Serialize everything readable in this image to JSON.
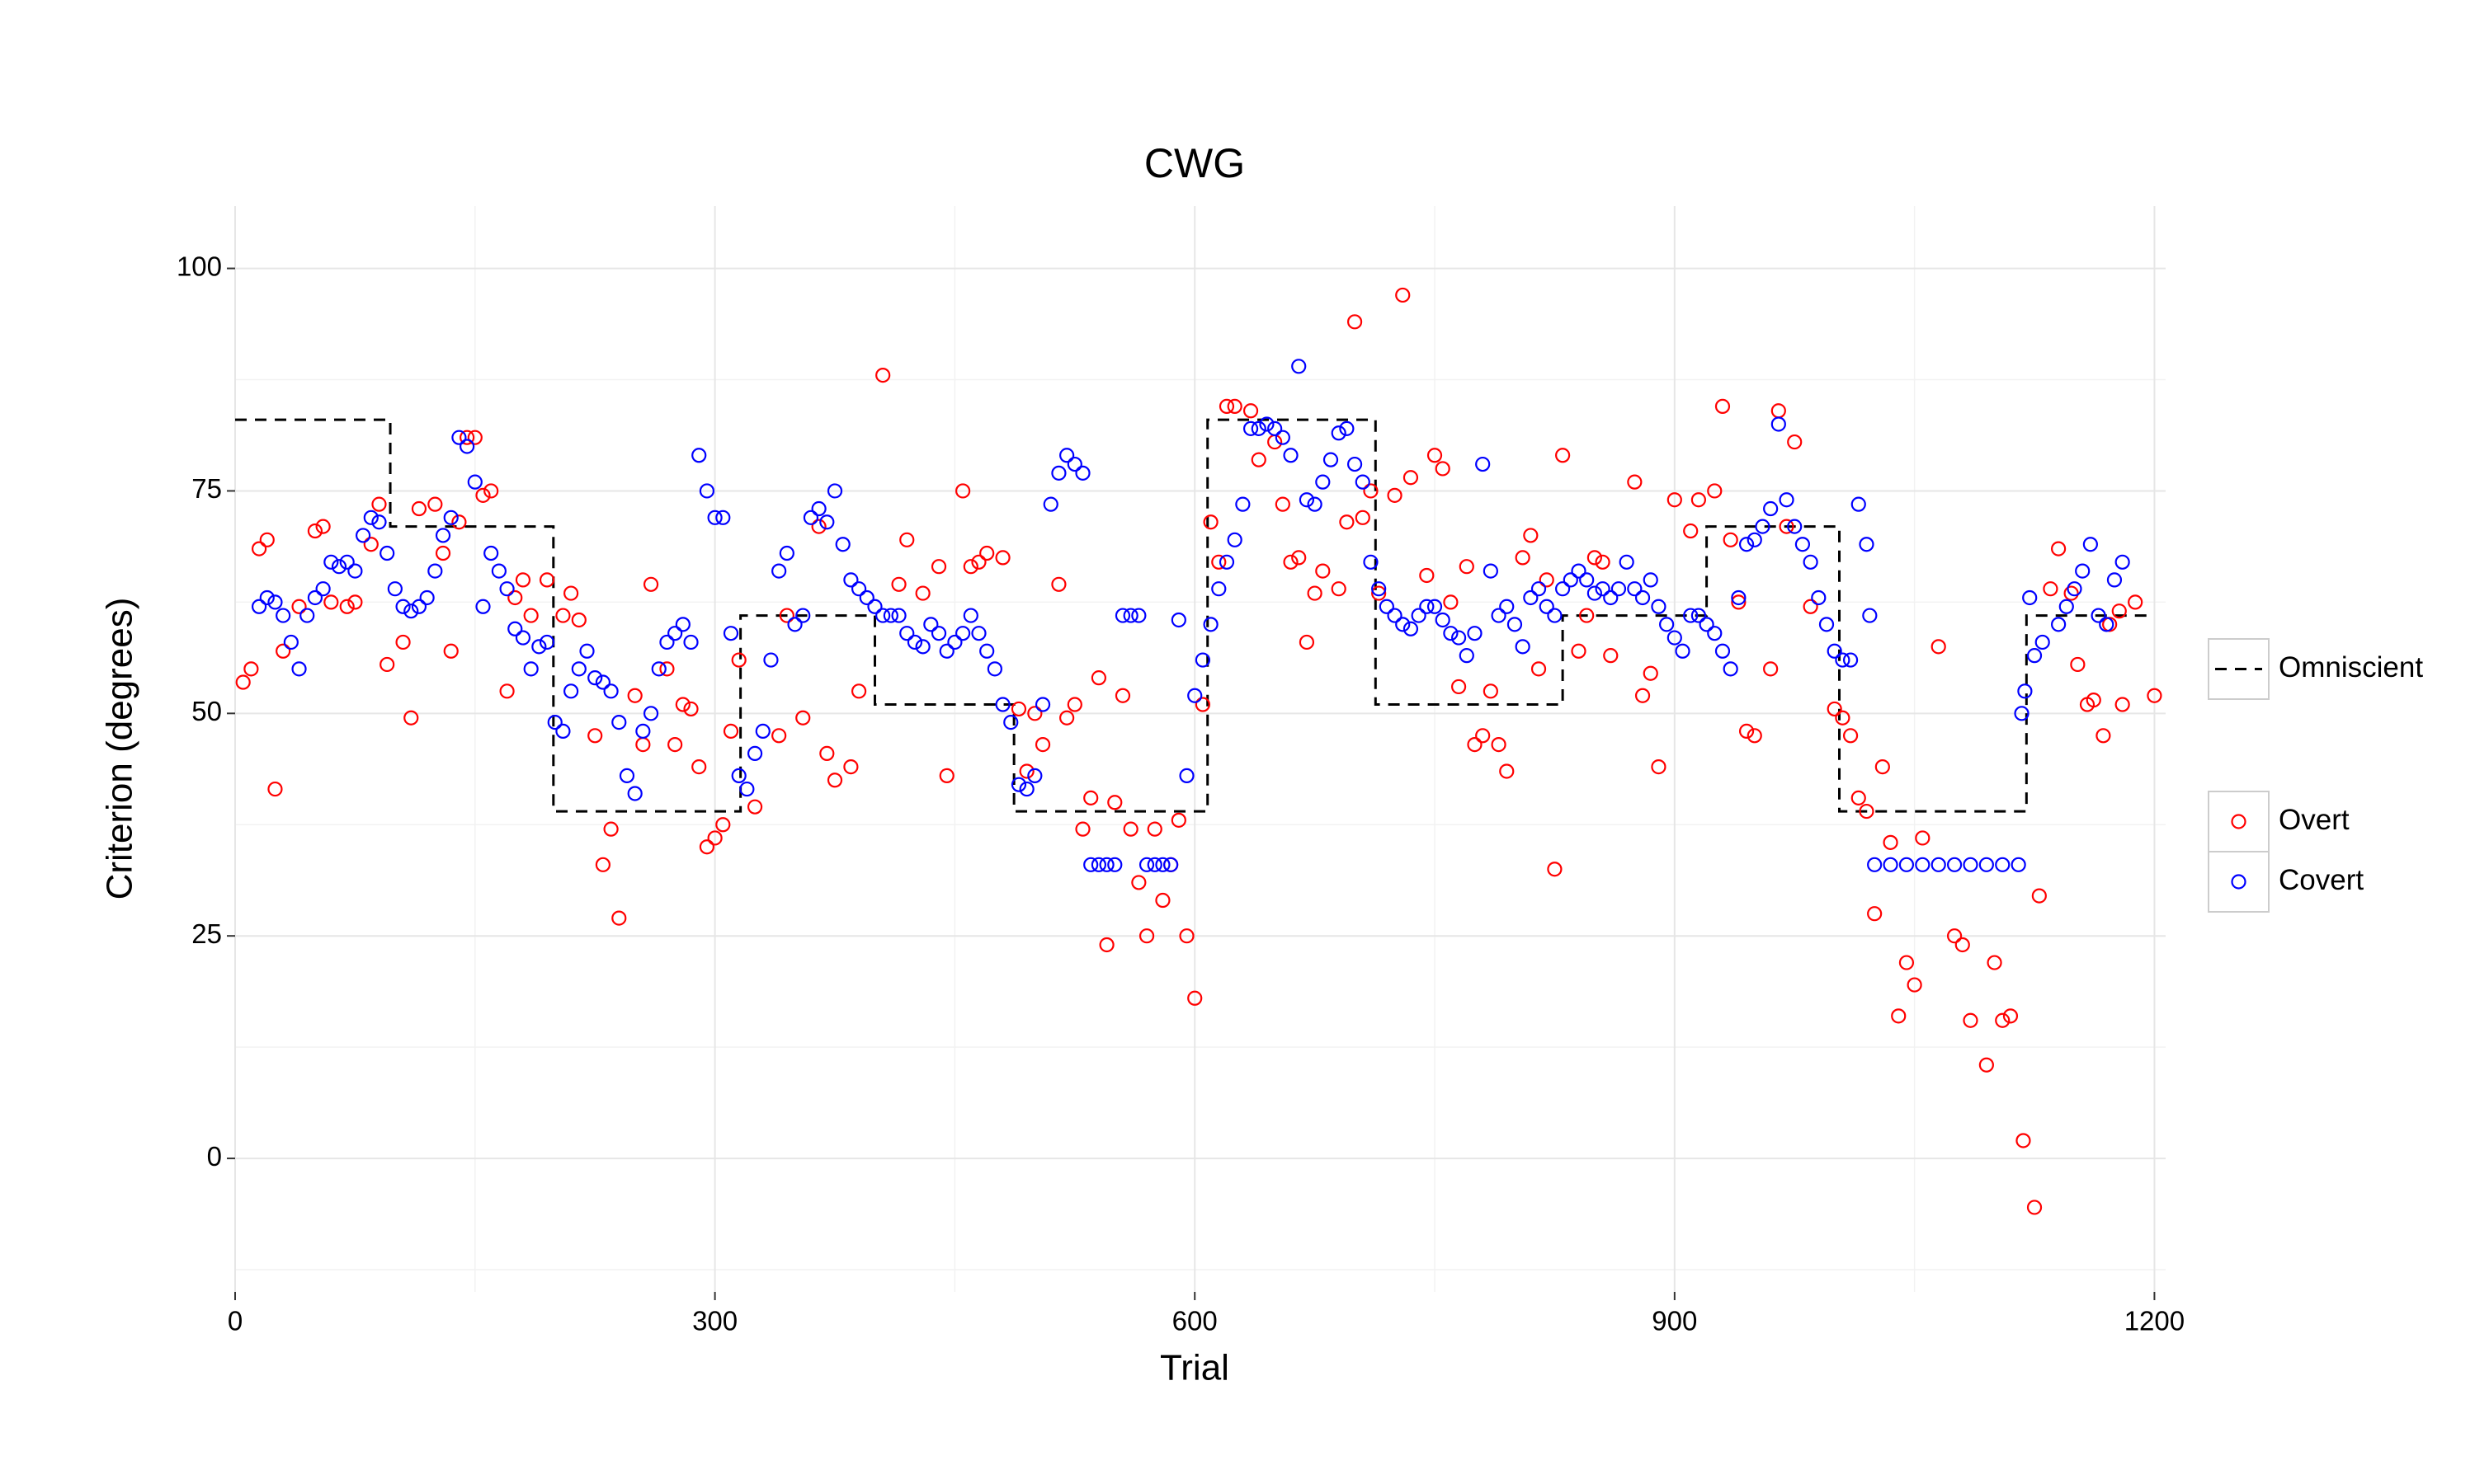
{
  "chart_data": {
    "type": "scatter",
    "title": "CWG",
    "x_label": "Trial",
    "y_label": "Criterion (degrees)",
    "xlim": [
      0,
      1207
    ],
    "ylim": [
      -15,
      107
    ],
    "xticks": [
      0,
      300,
      600,
      900,
      1200
    ],
    "yticks": [
      0,
      25,
      50,
      75,
      100
    ],
    "x_minor_ticks": [
      150,
      450,
      750,
      1050
    ],
    "y_minor_ticks": [
      -12.5,
      12.5,
      37.5,
      62.5,
      87.5
    ],
    "grid": true,
    "series": [
      {
        "name": "Overt",
        "type": "scatter",
        "color": "#ff0000",
        "x": [
          5,
          10,
          15,
          20,
          25,
          30,
          40,
          50,
          55,
          60,
          70,
          75,
          85,
          90,
          95,
          105,
          110,
          115,
          125,
          130,
          135,
          140,
          145,
          150,
          155,
          160,
          170,
          175,
          180,
          185,
          195,
          205,
          210,
          215,
          225,
          230,
          235,
          240,
          250,
          255,
          260,
          270,
          275,
          280,
          285,
          290,
          295,
          300,
          305,
          310,
          315,
          325,
          340,
          345,
          355,
          365,
          370,
          375,
          385,
          390,
          405,
          415,
          420,
          430,
          440,
          445,
          455,
          460,
          465,
          470,
          480,
          490,
          495,
          500,
          505,
          515,
          520,
          525,
          530,
          535,
          540,
          545,
          550,
          555,
          560,
          565,
          570,
          575,
          580,
          585,
          590,
          595,
          600,
          605,
          610,
          615,
          620,
          625,
          635,
          640,
          650,
          655,
          660,
          665,
          670,
          675,
          680,
          690,
          695,
          700,
          705,
          710,
          715,
          725,
          730,
          735,
          745,
          750,
          755,
          760,
          765,
          770,
          775,
          780,
          785,
          790,
          795,
          805,
          810,
          815,
          820,
          825,
          830,
          840,
          845,
          850,
          855,
          860,
          875,
          880,
          885,
          890,
          900,
          910,
          915,
          925,
          930,
          935,
          940,
          945,
          950,
          960,
          965,
          970,
          975,
          985,
          1000,
          1005,
          1010,
          1015,
          1020,
          1025,
          1030,
          1035,
          1040,
          1045,
          1050,
          1055,
          1065,
          1075,
          1080,
          1085,
          1095,
          1100,
          1105,
          1110,
          1118,
          1125,
          1128,
          1135,
          1140,
          1148,
          1152,
          1158,
          1162,
          1168,
          1172,
          1178,
          1180,
          1188,
          1200
        ],
        "values": [
          53.5,
          55,
          68.5,
          69.5,
          41.5,
          57,
          62,
          70.5,
          71,
          62.5,
          62,
          62.5,
          69,
          73.5,
          55.5,
          58,
          49.5,
          73,
          73.5,
          68,
          57,
          71.5,
          81,
          81,
          74.5,
          75,
          52.5,
          63,
          65,
          61,
          65,
          61,
          63.5,
          60.5,
          47.5,
          33,
          37,
          27,
          52,
          46.5,
          64.5,
          55,
          46.5,
          51,
          50.5,
          44,
          35,
          36,
          37.5,
          48,
          56,
          39.5,
          47.5,
          61,
          49.5,
          71,
          45.5,
          42.5,
          44,
          52.5,
          88,
          64.5,
          69.5,
          63.5,
          66.5,
          43,
          75,
          66.5,
          67,
          68,
          67.5,
          50.5,
          43.5,
          50,
          46.5,
          64.5,
          49.5,
          51,
          37,
          40.5,
          54,
          24,
          40,
          52,
          37,
          31,
          25,
          37,
          29,
          33,
          38,
          25,
          18,
          51,
          71.5,
          67,
          84.5,
          84.5,
          84,
          78.5,
          80.5,
          73.5,
          67,
          67.5,
          58,
          63.5,
          66,
          64,
          71.5,
          94,
          72,
          75,
          63.5,
          74.5,
          97,
          76.5,
          65.5,
          79,
          77.5,
          62.5,
          53,
          66.5,
          46.5,
          47.5,
          52.5,
          46.5,
          43.5,
          67.5,
          70,
          55,
          65,
          32.5,
          79,
          57,
          61,
          67.5,
          67,
          56.5,
          76,
          52,
          54.5,
          44,
          74,
          70.5,
          74,
          75,
          84.5,
          69.5,
          62.5,
          48,
          47.5,
          55,
          84,
          71,
          80.5,
          62,
          50.5,
          49.5,
          47.5,
          40.5,
          39,
          27.5,
          44,
          35.5,
          16,
          22,
          19.5,
          36,
          57.5,
          25,
          24,
          15.5,
          10.5,
          22,
          15.5,
          16,
          2,
          -5.5,
          29.5,
          64,
          68.5,
          63.5,
          55.5,
          51,
          51.5,
          47.5,
          60,
          61.5,
          51,
          62.5,
          52
        ]
      },
      {
        "name": "Covert",
        "type": "scatter",
        "color": "#0000ff",
        "x": [
          15,
          20,
          25,
          30,
          35,
          40,
          45,
          50,
          55,
          60,
          65,
          70,
          75,
          80,
          85,
          90,
          95,
          100,
          105,
          110,
          115,
          120,
          125,
          130,
          135,
          140,
          145,
          150,
          155,
          160,
          165,
          170,
          175,
          180,
          185,
          190,
          195,
          200,
          205,
          210,
          215,
          220,
          225,
          230,
          235,
          240,
          245,
          250,
          255,
          260,
          265,
          270,
          275,
          280,
          285,
          290,
          295,
          300,
          305,
          310,
          315,
          320,
          325,
          330,
          335,
          340,
          345,
          350,
          355,
          360,
          365,
          370,
          375,
          380,
          385,
          390,
          395,
          400,
          405,
          410,
          415,
          420,
          425,
          430,
          435,
          440,
          445,
          450,
          455,
          460,
          465,
          470,
          475,
          480,
          485,
          490,
          495,
          500,
          505,
          510,
          515,
          520,
          525,
          530,
          535,
          540,
          545,
          550,
          555,
          560,
          565,
          570,
          575,
          580,
          585,
          590,
          595,
          600,
          605,
          610,
          615,
          620,
          625,
          630,
          635,
          640,
          645,
          650,
          655,
          660,
          665,
          670,
          675,
          680,
          685,
          690,
          695,
          700,
          705,
          710,
          715,
          720,
          725,
          730,
          735,
          740,
          745,
          750,
          755,
          760,
          765,
          770,
          775,
          780,
          785,
          790,
          795,
          800,
          805,
          810,
          815,
          820,
          825,
          830,
          835,
          840,
          845,
          850,
          855,
          860,
          865,
          870,
          875,
          880,
          885,
          890,
          895,
          900,
          905,
          910,
          915,
          920,
          925,
          930,
          935,
          940,
          945,
          950,
          955,
          960,
          965,
          970,
          975,
          980,
          985,
          990,
          995,
          1000,
          1005,
          1010,
          1015,
          1020,
          1022,
          1025,
          1035,
          1045,
          1055,
          1065,
          1075,
          1085,
          1095,
          1105,
          1115,
          1117,
          1119,
          1122,
          1125,
          1130,
          1140,
          1145,
          1150,
          1155,
          1160,
          1165,
          1170,
          1175,
          1180
        ],
        "values": [
          62,
          63,
          62.5,
          61,
          58,
          55,
          61,
          63,
          64,
          67,
          66.5,
          67,
          66,
          70,
          72,
          71.5,
          68,
          64,
          62,
          61.5,
          62,
          63,
          66,
          70,
          72,
          81,
          80,
          76,
          62,
          68,
          66,
          64,
          59.5,
          58.5,
          55,
          57.5,
          58,
          49,
          48,
          52.5,
          55,
          57,
          54,
          53.5,
          52.5,
          49,
          43,
          41,
          48,
          50,
          55,
          58,
          59,
          60,
          58,
          79,
          75,
          72,
          72,
          59,
          43,
          41.5,
          45.5,
          48,
          56,
          66,
          68,
          60,
          61,
          72,
          73,
          71.5,
          75,
          69,
          65,
          64,
          63,
          62,
          61,
          61,
          61,
          59,
          58,
          57.5,
          60,
          59,
          57,
          58,
          59,
          61,
          59,
          57,
          55,
          51,
          49,
          42,
          41.5,
          43,
          51,
          73.5,
          77,
          79,
          78,
          77,
          33,
          33,
          33,
          33,
          61,
          61,
          61,
          33,
          33,
          33,
          33,
          60.5,
          43,
          52,
          56,
          60,
          64,
          67,
          69.5,
          73.5,
          82,
          82,
          82.5,
          82,
          81,
          79,
          89,
          74,
          73.5,
          76,
          78.5,
          81.5,
          82,
          78,
          76,
          67,
          64,
          62,
          61,
          60,
          59.5,
          61,
          62,
          62,
          60.5,
          59,
          58.5,
          56.5,
          59,
          78,
          66,
          61,
          62,
          60,
          57.5,
          63,
          64,
          62,
          61,
          64,
          65,
          66,
          65,
          63.5,
          64,
          63,
          64,
          67,
          64,
          63,
          65,
          62,
          60,
          58.5,
          57,
          61,
          61,
          60,
          59,
          57,
          55,
          63,
          69,
          69.5,
          71,
          73,
          82.5,
          74,
          71,
          69,
          67,
          63,
          60,
          57,
          56,
          56,
          73.5,
          69,
          61,
          33,
          33,
          33,
          33,
          33,
          33,
          33,
          33,
          33,
          33,
          50,
          52.5,
          63,
          56.5,
          58,
          60,
          62,
          64,
          66,
          69,
          61,
          60,
          65,
          67
        ]
      },
      {
        "name": "Omniscient",
        "type": "line",
        "color": "#000000",
        "dashed": true,
        "x": [
          0,
          97,
          97,
          199,
          199,
          316,
          316,
          400,
          400,
          487,
          487,
          608,
          608,
          713,
          713,
          830,
          830,
          920,
          920,
          1003,
          1003,
          1120,
          1120,
          1200
        ],
        "values": [
          83,
          83,
          71,
          71,
          39,
          39,
          61,
          61,
          51,
          51,
          39,
          39,
          83,
          83,
          51,
          51,
          61,
          61,
          71,
          71,
          39,
          39,
          61,
          61
        ]
      }
    ]
  }
}
